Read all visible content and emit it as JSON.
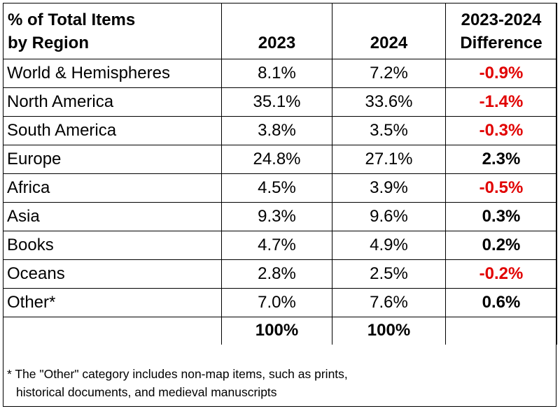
{
  "header": {
    "region_line1": "% of Total Items",
    "region_line2": "by Region",
    "col_2023": "2023",
    "col_2024": "2024",
    "diff_line1": "2023-2024",
    "diff_line2": "Difference"
  },
  "rows": [
    {
      "region": "World & Hemispheres",
      "y2023": "8.1%",
      "y2024": "7.2%",
      "diff": "-0.9%",
      "diff_color": "#e10000"
    },
    {
      "region": "North America",
      "y2023": "35.1%",
      "y2024": "33.6%",
      "diff": "-1.4%",
      "diff_color": "#e10000"
    },
    {
      "region": "South America",
      "y2023": "3.8%",
      "y2024": "3.5%",
      "diff": "-0.3%",
      "diff_color": "#e10000"
    },
    {
      "region": "Europe",
      "y2023": "24.8%",
      "y2024": "27.1%",
      "diff": "2.3%",
      "diff_color": "#000000"
    },
    {
      "region": "Africa",
      "y2023": "4.5%",
      "y2024": "3.9%",
      "diff": "-0.5%",
      "diff_color": "#e10000"
    },
    {
      "region": "Asia",
      "y2023": "9.3%",
      "y2024": "9.6%",
      "diff": "0.3%",
      "diff_color": "#000000"
    },
    {
      "region": "Books",
      "y2023": "4.7%",
      "y2024": "4.9%",
      "diff": "0.2%",
      "diff_color": "#000000"
    },
    {
      "region": "Oceans",
      "y2023": "2.8%",
      "y2024": "2.5%",
      "diff": "-0.2%",
      "diff_color": "#e10000"
    },
    {
      "region": "Other*",
      "y2023": "7.0%",
      "y2024": "7.6%",
      "diff": "0.6%",
      "diff_color": "#000000"
    }
  ],
  "totals": {
    "y2023": "100%",
    "y2024": "100%"
  },
  "footnote": {
    "line1": "* The \"Other\" category includes non-map items, such as prints,",
    "line2": "historical documents, and medieval manuscripts"
  }
}
